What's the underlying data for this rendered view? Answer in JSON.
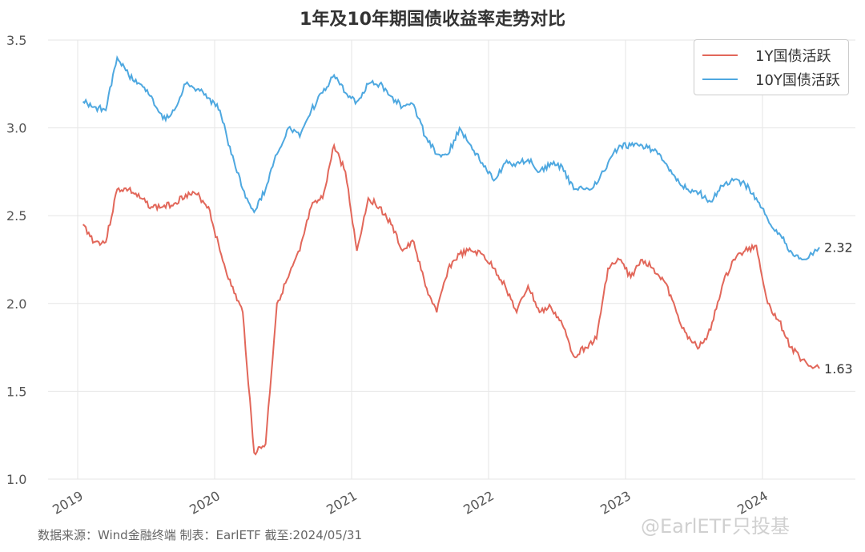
{
  "chart_data": {
    "type": "line",
    "title": "1年及10年期国债收益率走势对比",
    "xlabel": "",
    "ylabel": "",
    "ylim": [
      1.0,
      3.5
    ],
    "yticks": [
      "1.0",
      "1.5",
      "2.0",
      "2.5",
      "3.0",
      "3.5"
    ],
    "xticks": [
      "2019",
      "2020",
      "2021",
      "2022",
      "2023",
      "2024"
    ],
    "grid": true,
    "legend_placement": "top-right",
    "x": [
      "2019-01",
      "2019-02",
      "2019-03",
      "2019-04",
      "2019-05",
      "2019-06",
      "2019-07",
      "2019-08",
      "2019-09",
      "2019-10",
      "2019-11",
      "2019-12",
      "2020-01",
      "2020-02",
      "2020-03",
      "2020-04",
      "2020-05",
      "2020-06",
      "2020-07",
      "2020-08",
      "2020-09",
      "2020-10",
      "2020-11",
      "2020-12",
      "2021-01",
      "2021-02",
      "2021-03",
      "2021-04",
      "2021-05",
      "2021-06",
      "2021-07",
      "2021-08",
      "2021-09",
      "2021-10",
      "2021-11",
      "2021-12",
      "2022-01",
      "2022-02",
      "2022-03",
      "2022-04",
      "2022-05",
      "2022-06",
      "2022-07",
      "2022-08",
      "2022-09",
      "2022-10",
      "2022-11",
      "2022-12",
      "2023-01",
      "2023-02",
      "2023-03",
      "2023-04",
      "2023-05",
      "2023-06",
      "2023-07",
      "2023-08",
      "2023-09",
      "2023-10",
      "2023-11",
      "2023-12",
      "2024-01",
      "2024-02",
      "2024-03",
      "2024-04",
      "2024-05-31"
    ],
    "series": [
      {
        "name": "1Y国债活跃",
        "color": "#e2675a",
        "end_label": "1.63",
        "values": [
          2.45,
          2.35,
          2.35,
          2.65,
          2.65,
          2.6,
          2.55,
          2.55,
          2.57,
          2.62,
          2.62,
          2.55,
          2.3,
          2.1,
          1.95,
          1.15,
          1.2,
          2.0,
          2.15,
          2.3,
          2.55,
          2.6,
          2.9,
          2.75,
          2.3,
          2.6,
          2.55,
          2.45,
          2.3,
          2.35,
          2.1,
          1.95,
          2.2,
          2.28,
          2.3,
          2.28,
          2.2,
          2.1,
          1.95,
          2.1,
          1.95,
          1.98,
          1.88,
          1.7,
          1.75,
          1.8,
          2.2,
          2.25,
          2.15,
          2.25,
          2.2,
          2.12,
          1.95,
          1.8,
          1.75,
          1.85,
          2.1,
          2.25,
          2.3,
          2.33,
          2.0,
          1.9,
          1.75,
          1.68,
          1.63
        ]
      },
      {
        "name": "10Y国债活跃",
        "color": "#4ea8e0",
        "end_label": "2.32",
        "values": [
          3.15,
          3.12,
          3.1,
          3.4,
          3.3,
          3.25,
          3.18,
          3.05,
          3.1,
          3.25,
          3.22,
          3.17,
          3.1,
          2.85,
          2.65,
          2.52,
          2.65,
          2.85,
          3.0,
          2.95,
          3.1,
          3.2,
          3.3,
          3.2,
          3.15,
          3.25,
          3.25,
          3.18,
          3.12,
          3.13,
          2.95,
          2.85,
          2.85,
          3.0,
          2.9,
          2.8,
          2.7,
          2.8,
          2.8,
          2.82,
          2.75,
          2.8,
          2.78,
          2.65,
          2.65,
          2.68,
          2.8,
          2.9,
          2.9,
          2.9,
          2.87,
          2.8,
          2.7,
          2.65,
          2.63,
          2.58,
          2.67,
          2.7,
          2.68,
          2.6,
          2.48,
          2.4,
          2.3,
          2.25,
          2.32
        ]
      }
    ]
  },
  "footer": "数据来源：Wind金融终端 制表：EarlETF 截至:2024/05/31",
  "watermark": "@EarlETF只投基"
}
